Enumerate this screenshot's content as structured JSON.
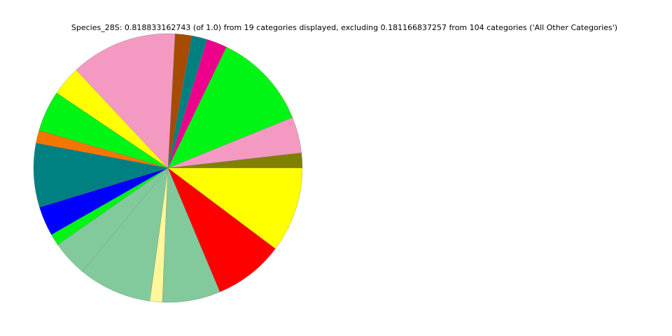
{
  "chart_data": {
    "type": "pie",
    "title": "Species_28S: 0.818833162743 (of 1.0) from 19 categories displayed, excluding 0.181166837257 from 104 categories ('All Other Categories')",
    "start_angle_deg": 0,
    "direction": "counterclockwise",
    "legend": "none",
    "slices": [
      {
        "value": 0.0148,
        "color": "#808000"
      },
      {
        "value": 0.0355,
        "color": "#f49ac2"
      },
      {
        "value": 0.0958,
        "color": "#00f514"
      },
      {
        "value": 0.0202,
        "color": "#ec008c"
      },
      {
        "value": 0.0152,
        "color": "#008080"
      },
      {
        "value": 0.0164,
        "color": "#a64b00"
      },
      {
        "value": 0.1049,
        "color": "#f49ac2"
      },
      {
        "value": 0.0293,
        "color": "#ffff00"
      },
      {
        "value": 0.0403,
        "color": "#00f514"
      },
      {
        "value": 0.0127,
        "color": "#f47500"
      },
      {
        "value": 0.063,
        "color": "#008080"
      },
      {
        "value": 0.0291,
        "color": "#0000ff"
      },
      {
        "value": 0.0114,
        "color": "#00f514"
      },
      {
        "value": 0.0357,
        "color": "#82ca9c"
      },
      {
        "value": 0.0721,
        "color": "#82ca9c"
      },
      {
        "value": 0.0123,
        "color": "#fff79a"
      },
      {
        "value": 0.0571,
        "color": "#82ca9c"
      },
      {
        "value": 0.0691,
        "color": "#ff0000"
      },
      {
        "value": 0.0839,
        "color": "#ffff00"
      }
    ]
  }
}
